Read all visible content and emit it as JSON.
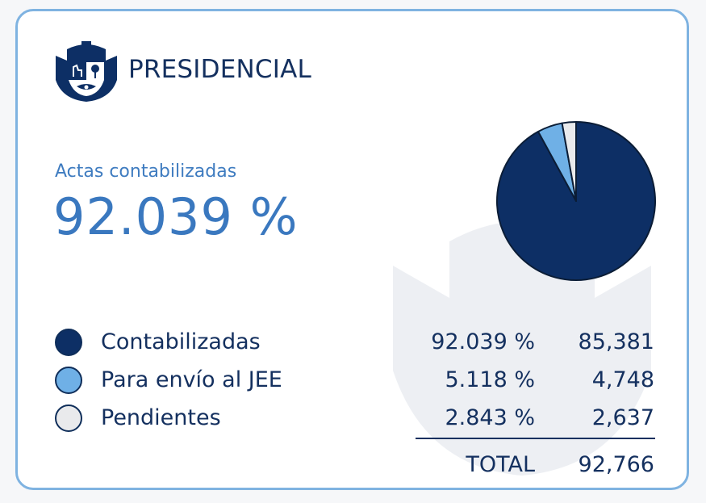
{
  "header": {
    "title": "PRESIDENCIAL",
    "logo_icon": "peru-coat-of-arms-icon"
  },
  "summary": {
    "label": "Actas contabilizadas",
    "percent": "92.039 %"
  },
  "table": {
    "rows": [
      {
        "label": "Contabilizadas",
        "percent": "92.039 %",
        "count": "85,381",
        "color": "#0d2f65"
      },
      {
        "label": "Para envío al JEE",
        "percent": "5.118 %",
        "count": "4,748",
        "color": "#6fb0e6"
      },
      {
        "label": "Pendientes",
        "percent": "2.843 %",
        "count": "2,637",
        "color": "#e9eaec"
      }
    ],
    "total_label": "TOTAL",
    "total_value": "92,766"
  },
  "chart_data": {
    "type": "pie",
    "title": "PRESIDENCIAL",
    "categories": [
      "Contabilizadas",
      "Para envío al JEE",
      "Pendientes"
    ],
    "values": [
      92.039,
      5.118,
      2.843
    ],
    "counts": [
      85381,
      4748,
      2637
    ],
    "colors": [
      "#0d2f65",
      "#6fb0e6",
      "#e9eaec"
    ],
    "stroke": "#0b1d36"
  }
}
